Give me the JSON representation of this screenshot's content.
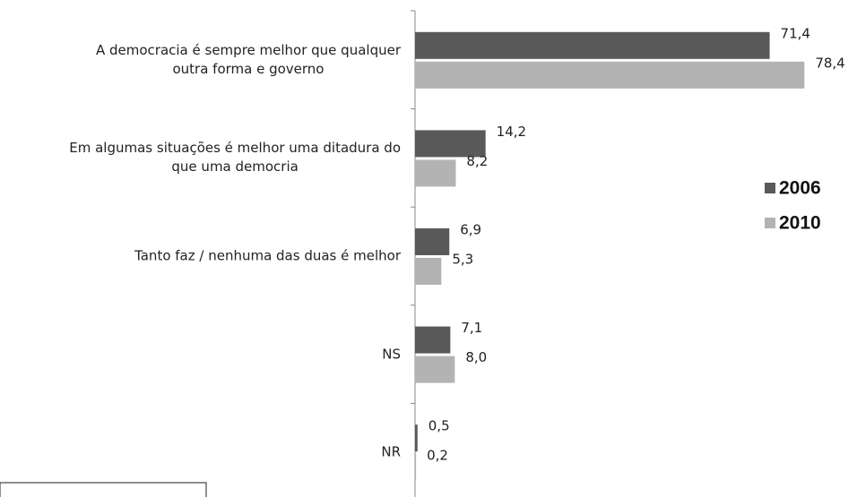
{
  "chart_data": {
    "type": "bar",
    "orientation": "horizontal",
    "categories": [
      "A democracia é sempre melhor que qualquer\noutra forma e governo",
      "Em algumas situações é melhor uma ditadura do\nque uma democria",
      "Tanto faz / nenhuma das duas é melhor",
      "NS",
      "NR"
    ],
    "series": [
      {
        "name": "2006",
        "color": "#595959",
        "values": [
          71.4,
          14.2,
          6.9,
          7.1,
          0.5
        ],
        "value_labels": [
          "71,4",
          "14,2",
          "6,9",
          "7,1",
          "0,5"
        ]
      },
      {
        "name": "2010",
        "color": "#b3b3b3",
        "values": [
          78.4,
          8.2,
          5.3,
          8.0,
          0.2
        ],
        "value_labels": [
          "78,4",
          "8,2",
          "5,3",
          "8,0",
          "0,2"
        ]
      }
    ],
    "legend": "right"
  }
}
